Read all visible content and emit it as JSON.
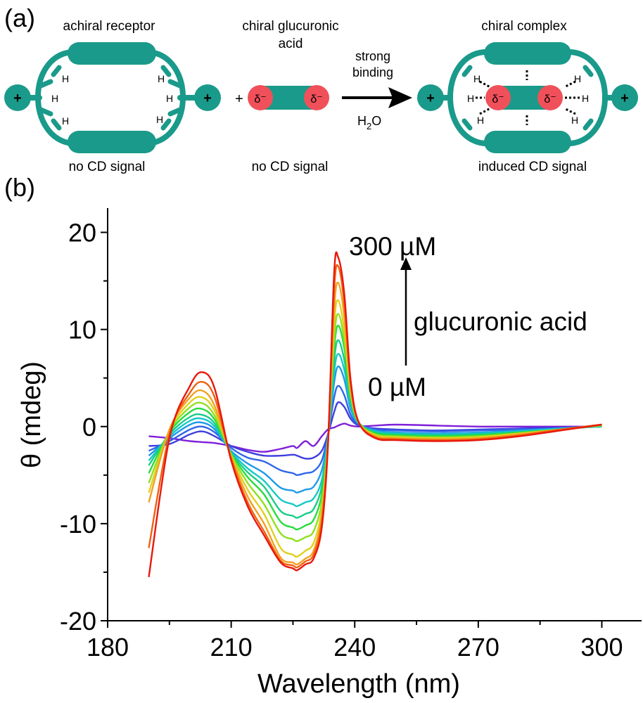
{
  "panel_a": {
    "panel_label": "(a)",
    "receptor_title": "achiral receptor",
    "acid_title_line1": "chiral glucuronic",
    "acid_title_line2": "acid",
    "complex_title": "chiral complex",
    "arrow_label_line1": "strong",
    "arrow_label_line2": "binding",
    "arrow_label_below": "H",
    "arrow_label_below_sub": "2",
    "arrow_label_below_tail": "O",
    "plus_sign": "+",
    "charge_plus": "+",
    "hydrogen": "H",
    "delta_minus": "δ⁻",
    "receptor_caption": "no CD signal",
    "acid_caption": "no CD signal",
    "complex_caption": "induced CD signal",
    "colors": {
      "teal": "#1a9a8a",
      "red": "#f0505a"
    }
  },
  "panel_b": {
    "panel_label": "(b)",
    "label_high": "300 µM",
    "label_low": "0 µM",
    "label_titrant": "glucuronic acid"
  },
  "chart_data": {
    "type": "line",
    "xlabel": "Wavelength (nm)",
    "ylabel": "θ (mdeg)",
    "xlim": [
      180,
      310
    ],
    "ylim": [
      -20,
      22.5
    ],
    "xticks": [
      180,
      210,
      240,
      270,
      300
    ],
    "xtick_labels": [
      "180",
      "210",
      "240",
      "270",
      "300"
    ],
    "yticks": [
      -20,
      -10,
      0,
      10,
      20
    ],
    "ytick_labels": [
      "-20",
      "-10",
      "0",
      "10",
      "20"
    ],
    "grid": false,
    "legend": "none",
    "x": [
      190,
      195,
      200,
      203,
      206,
      210,
      214,
      218,
      222,
      225,
      226,
      228,
      230,
      232,
      233.5,
      235,
      236,
      237.5,
      239,
      241,
      245,
      250,
      260,
      270,
      280,
      290,
      300
    ],
    "series": [
      {
        "color": "#7f1fd9",
        "values": [
          -1.0,
          -1.2,
          -1.5,
          -1.6,
          -1.7,
          -2.0,
          -2.4,
          -2.6,
          -2.3,
          -2.0,
          -2.2,
          -1.5,
          -2.0,
          -1.0,
          -0.3,
          -0.1,
          0.1,
          0.3,
          0.1,
          0.0,
          0.1,
          0.2,
          0.1,
          0.0,
          0.0,
          0.0,
          0.0
        ]
      },
      {
        "color": "#3f3fe0",
        "values": [
          -2.0,
          -1.8,
          -0.8,
          -0.5,
          -1.0,
          -2.0,
          -2.6,
          -3.0,
          -3.0,
          -2.9,
          -3.0,
          -3.3,
          -3.2,
          -2.5,
          -0.8,
          1.5,
          2.5,
          2.0,
          0.8,
          0.1,
          -0.2,
          -0.3,
          -0.4,
          -0.3,
          -0.2,
          -0.1,
          0.0
        ]
      },
      {
        "color": "#2f66e8",
        "values": [
          -2.5,
          -1.5,
          -0.3,
          0.0,
          -0.6,
          -2.2,
          -3.2,
          -3.6,
          -4.5,
          -4.8,
          -5.0,
          -4.8,
          -4.6,
          -3.5,
          -0.8,
          3.0,
          4.2,
          3.2,
          1.2,
          0.2,
          -0.3,
          -0.4,
          -0.5,
          -0.4,
          -0.3,
          -0.2,
          0.0
        ]
      },
      {
        "color": "#1e9ae8",
        "values": [
          -3.0,
          -1.2,
          0.2,
          0.4,
          -0.3,
          -2.5,
          -3.8,
          -4.8,
          -6.3,
          -6.6,
          -6.8,
          -6.5,
          -6.2,
          -4.5,
          -1.0,
          4.5,
          6.2,
          4.8,
          1.8,
          0.3,
          -0.4,
          -0.6,
          -0.7,
          -0.6,
          -0.4,
          -0.2,
          0.0
        ]
      },
      {
        "color": "#18c8c8",
        "values": [
          -3.5,
          -1.0,
          0.6,
          0.8,
          0.0,
          -2.6,
          -4.3,
          -5.6,
          -7.5,
          -8.0,
          -8.2,
          -7.8,
          -7.4,
          -5.5,
          -1.2,
          5.6,
          7.5,
          5.8,
          2.2,
          0.3,
          -0.5,
          -0.7,
          -0.8,
          -0.7,
          -0.5,
          -0.2,
          0.0
        ]
      },
      {
        "color": "#18cc88",
        "values": [
          -4.0,
          -0.8,
          1.0,
          1.2,
          0.3,
          -2.7,
          -4.7,
          -6.2,
          -8.7,
          -9.2,
          -9.4,
          -9.0,
          -8.5,
          -6.2,
          -1.3,
          6.8,
          8.9,
          6.8,
          2.6,
          0.4,
          -0.6,
          -0.8,
          -0.9,
          -0.8,
          -0.6,
          -0.3,
          0.1
        ]
      },
      {
        "color": "#28dc3c",
        "values": [
          -4.8,
          -0.6,
          1.5,
          1.8,
          0.7,
          -2.8,
          -5.2,
          -7.0,
          -9.8,
          -10.4,
          -10.6,
          -10.2,
          -9.6,
          -7.0,
          -1.4,
          8.0,
          10.4,
          8.0,
          3.0,
          0.4,
          -0.7,
          -0.9,
          -1.0,
          -0.9,
          -0.6,
          -0.3,
          0.1
        ]
      },
      {
        "color": "#90e020",
        "values": [
          -5.8,
          -0.5,
          2.0,
          2.4,
          1.1,
          -2.9,
          -5.8,
          -8.0,
          -11.0,
          -11.6,
          -11.8,
          -11.4,
          -10.8,
          -7.8,
          -1.5,
          9.0,
          11.6,
          8.8,
          3.3,
          0.4,
          -0.8,
          -1.0,
          -1.1,
          -1.0,
          -0.7,
          -0.3,
          0.1
        ]
      },
      {
        "color": "#e0d020",
        "values": [
          -6.8,
          -0.4,
          2.5,
          3.0,
          1.6,
          -3.0,
          -6.5,
          -9.0,
          -12.5,
          -13.2,
          -13.4,
          -12.8,
          -12.0,
          -8.6,
          -1.6,
          10.5,
          13.0,
          9.8,
          3.6,
          0.4,
          -0.9,
          -1.1,
          -1.2,
          -1.1,
          -0.7,
          -0.3,
          0.2
        ]
      },
      {
        "color": "#f2a020",
        "values": [
          -7.8,
          -0.3,
          3.0,
          3.7,
          2.1,
          -3.1,
          -7.2,
          -10.0,
          -13.5,
          -14.0,
          -14.2,
          -13.6,
          -12.8,
          -9.2,
          -1.7,
          12.0,
          14.8,
          11.2,
          4.0,
          0.4,
          -1.0,
          -1.2,
          -1.3,
          -1.2,
          -0.8,
          -0.3,
          0.2
        ]
      },
      {
        "color": "#f06010",
        "values": [
          -12.5,
          -0.8,
          3.5,
          4.6,
          3.0,
          -3.3,
          -7.8,
          -10.8,
          -13.8,
          -14.3,
          -14.5,
          -13.9,
          -13.2,
          -9.8,
          -1.8,
          14.0,
          16.5,
          12.5,
          4.4,
          0.4,
          -1.1,
          -1.3,
          -1.4,
          -1.3,
          -0.9,
          -0.3,
          0.2
        ]
      },
      {
        "color": "#e8180c",
        "values": [
          -15.5,
          -1.2,
          4.2,
          5.6,
          3.9,
          -3.5,
          -8.2,
          -11.2,
          -14.0,
          -14.6,
          -14.8,
          -14.2,
          -13.6,
          -10.4,
          -1.9,
          15.8,
          17.4,
          13.5,
          4.8,
          0.4,
          -1.2,
          -1.4,
          -1.5,
          -1.4,
          -1.0,
          -0.4,
          0.2
        ]
      }
    ]
  }
}
